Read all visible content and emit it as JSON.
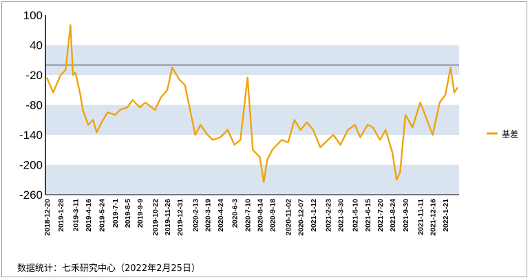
{
  "chart_data": {
    "type": "line",
    "title": "",
    "xlabel": "",
    "ylabel": "",
    "ylim": [
      -260,
      100
    ],
    "yticks": [
      100,
      40,
      -20,
      -80,
      -140,
      -200,
      -260
    ],
    "shaded_bands": [
      [
        -20,
        40
      ],
      [
        -140,
        -80
      ],
      [
        -260,
        -200
      ]
    ],
    "reference_line": 0,
    "x_ticks": [
      "2018-12-20",
      "2019-1-28",
      "2019-3-11",
      "2019-4-16",
      "2019-5-24",
      "2019-7-1",
      "2019-8-5",
      "2019-9-9",
      "2019-10-22",
      "2019-11-26",
      "2019-12-31",
      "2020-2-13",
      "2020-3-19",
      "2020-4-24",
      "2020-6-3",
      "2020-7-10",
      "2020-8-14",
      "2020-9-18",
      "2020-11-02",
      "2020-12-07",
      "2021-1-12",
      "2021-2-23",
      "2021-3-30",
      "2021-5-10",
      "2021-6-15",
      "2021-7-20",
      "2021-8-24",
      "2021-9-30",
      "2021-11-11",
      "2021-12-16",
      "2022-1-21"
    ],
    "legend_position": "right",
    "colors": {
      "series": "#f0a30a",
      "band": "#d9e4f0",
      "refline": "#4a4a4a"
    },
    "series": [
      {
        "name": "基差",
        "x": [
          "2018-12-20",
          "2019-1-7",
          "2019-1-28",
          "2019-2-11",
          "2019-2-25",
          "2019-3-4",
          "2019-3-11",
          "2019-3-25",
          "2019-4-1",
          "2019-4-16",
          "2019-4-30",
          "2019-5-10",
          "2019-5-24",
          "2019-6-10",
          "2019-7-1",
          "2019-7-15",
          "2019-8-5",
          "2019-8-20",
          "2019-9-9",
          "2019-9-25",
          "2019-10-22",
          "2019-11-8",
          "2019-11-26",
          "2019-12-10",
          "2019-12-31",
          "2020-1-15",
          "2020-2-13",
          "2020-2-28",
          "2020-3-19",
          "2020-4-3",
          "2020-4-24",
          "2020-5-15",
          "2020-6-3",
          "2020-6-20",
          "2020-7-10",
          "2020-7-25",
          "2020-8-14",
          "2020-8-25",
          "2020-9-4",
          "2020-9-18",
          "2020-10-15",
          "2020-11-02",
          "2020-11-20",
          "2020-12-07",
          "2020-12-25",
          "2021-1-12",
          "2021-2-1",
          "2021-2-23",
          "2021-3-10",
          "2021-3-30",
          "2021-4-20",
          "2021-5-10",
          "2021-5-25",
          "2021-6-15",
          "2021-6-30",
          "2021-7-20",
          "2021-8-5",
          "2021-8-24",
          "2021-9-5",
          "2021-9-15",
          "2021-9-30",
          "2021-10-20",
          "2021-11-11",
          "2021-11-30",
          "2021-12-16",
          "2022-1-5",
          "2022-1-21",
          "2022-2-5",
          "2022-2-15",
          "2022-2-25"
        ],
        "values": [
          -25,
          -55,
          -20,
          -10,
          80,
          -20,
          -15,
          -60,
          -90,
          -120,
          -110,
          -135,
          -115,
          -95,
          -100,
          -90,
          -85,
          -70,
          -85,
          -75,
          -90,
          -65,
          -50,
          -5,
          -30,
          -40,
          -140,
          -120,
          -140,
          -150,
          -145,
          -130,
          -160,
          -150,
          -25,
          -170,
          -185,
          -235,
          -190,
          -170,
          -150,
          -155,
          -110,
          -130,
          -115,
          -130,
          -165,
          -150,
          -140,
          -160,
          -130,
          -120,
          -145,
          -120,
          -125,
          -150,
          -130,
          -175,
          -230,
          -215,
          -100,
          -125,
          -75,
          -110,
          -140,
          -75,
          -60,
          -5,
          -55,
          -45
        ]
      }
    ]
  },
  "legend": {
    "label": "基差"
  },
  "footer": {
    "text": "数据统计：七禾研究中心（2022年2月25日）"
  }
}
